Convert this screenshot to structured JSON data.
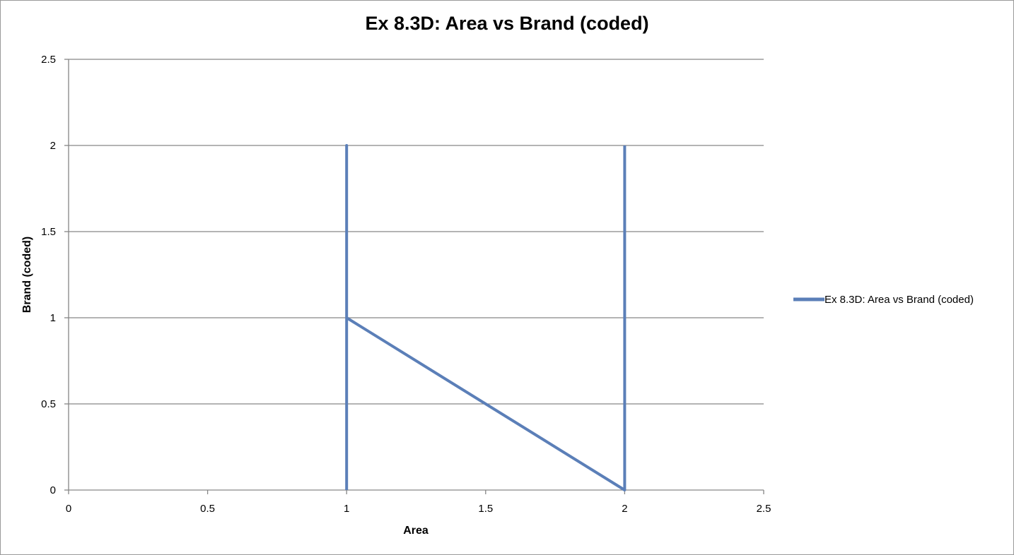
{
  "chart_data": {
    "type": "line",
    "title": "Ex 8.3D: Area vs Brand (coded)",
    "xlabel": "Area",
    "ylabel": "Brand (coded)",
    "xlim": [
      0,
      2.5
    ],
    "ylim": [
      0,
      2.5
    ],
    "x_ticks": [
      "0",
      "0.5",
      "1",
      "1.5",
      "2",
      "2.5"
    ],
    "y_ticks": [
      "0",
      "0.5",
      "1",
      "1.5",
      "2",
      "2.5"
    ],
    "grid": "horizontal",
    "legend_position": "right",
    "series": [
      {
        "name": "Ex 8.3D: Area vs Brand (coded)",
        "color": "#5b7fb8",
        "points": [
          {
            "x": 1,
            "y": 0
          },
          {
            "x": 1,
            "y": 2
          },
          {
            "x": 1,
            "y": 1
          },
          {
            "x": 2,
            "y": 0
          },
          {
            "x": 2,
            "y": 2
          }
        ]
      }
    ]
  }
}
